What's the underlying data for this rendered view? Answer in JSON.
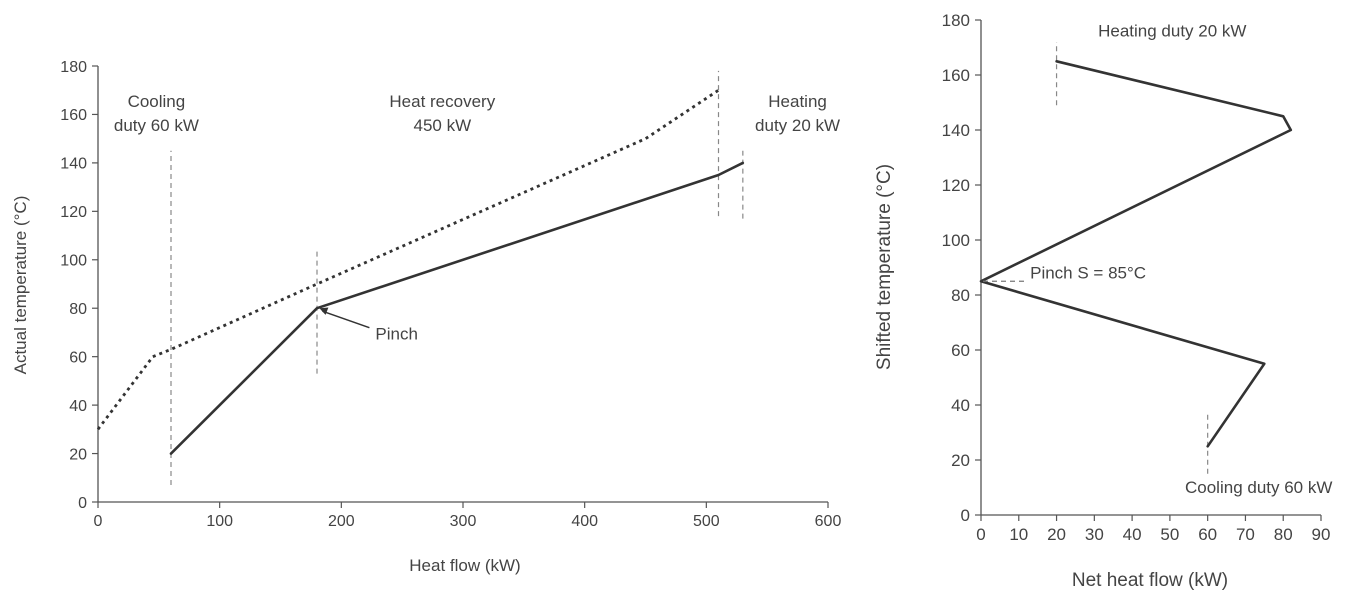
{
  "chart_data": [
    {
      "type": "line",
      "title": "",
      "xlabel": "Heat flow (kW)",
      "ylabel": "Actual temperature (°C)",
      "xlim": [
        0,
        600
      ],
      "ylim": [
        0,
        180
      ],
      "x_ticks": [
        "0",
        "100",
        "200",
        "300",
        "400",
        "500",
        "600"
      ],
      "y_ticks": [
        "0",
        "20",
        "40",
        "60",
        "80",
        "100",
        "120",
        "140",
        "160",
        "180"
      ],
      "grid": false,
      "legend": "none",
      "series": [
        {
          "style": "dotted",
          "color": "#333333",
          "points": [
            [
              0,
              30
            ],
            [
              45,
              60
            ],
            [
              60,
              63
            ],
            [
              180,
              90
            ],
            [
              450,
              150
            ],
            [
              510,
              170
            ]
          ]
        },
        {
          "style": "solid",
          "color": "#333333",
          "points": [
            [
              60,
              20
            ],
            [
              180,
              80
            ],
            [
              510,
              135
            ],
            [
              530,
              140
            ]
          ]
        }
      ],
      "reference_lines": [
        {
          "x": 60,
          "y_range": [
            7,
            145
          ]
        },
        {
          "x": 180,
          "y_range": [
            53,
            105
          ]
        },
        {
          "x": 510,
          "y_range": [
            118,
            178
          ]
        },
        {
          "x": 530,
          "y_range": [
            117,
            145
          ]
        }
      ],
      "annotations": [
        {
          "text_lines": [
            "Cooling",
            "duty 60 kW"
          ],
          "x": 48,
          "y": 163
        },
        {
          "text_lines": [
            "Heat recovery",
            "450 kW"
          ],
          "x": 283,
          "y": 163
        },
        {
          "text_lines": [
            "Heating",
            "duty 20 kW"
          ],
          "x": 575,
          "y": 163
        },
        {
          "text": "Pinch",
          "x": 228,
          "y": 67,
          "arrow_to": [
            182,
            80
          ]
        }
      ]
    },
    {
      "type": "line",
      "title": "",
      "xlabel": "Net heat flow (kW)",
      "ylabel": "Shifted temperature (°C)",
      "xlim": [
        0,
        90
      ],
      "ylim": [
        0,
        180
      ],
      "x_ticks": [
        "0",
        "10",
        "20",
        "30",
        "40",
        "50",
        "60",
        "70",
        "80",
        "90"
      ],
      "y_ticks": [
        "0",
        "20",
        "40",
        "60",
        "80",
        "100",
        "120",
        "140",
        "160",
        "180"
      ],
      "grid": false,
      "legend": "none",
      "series": [
        {
          "style": "solid",
          "color": "#333333",
          "points": [
            [
              20,
              165
            ],
            [
              80,
              145
            ],
            [
              82,
              140
            ],
            [
              0,
              85
            ],
            [
              75,
              55
            ],
            [
              60,
              25
            ]
          ]
        }
      ],
      "reference_lines": [
        {
          "x": 20,
          "y_range": [
            149,
            172
          ]
        },
        {
          "x": 60,
          "y_range": [
            15,
            37
          ]
        }
      ],
      "annotations": [
        {
          "text": "Heating duty 20 kW",
          "x": 31,
          "y": 174
        },
        {
          "text": "Pinch S = 85°C",
          "x": 13,
          "y": 86,
          "leader_to": [
            0,
            85
          ]
        },
        {
          "text": "Cooling duty 60 kW",
          "x": 54,
          "y": 8
        }
      ]
    }
  ]
}
